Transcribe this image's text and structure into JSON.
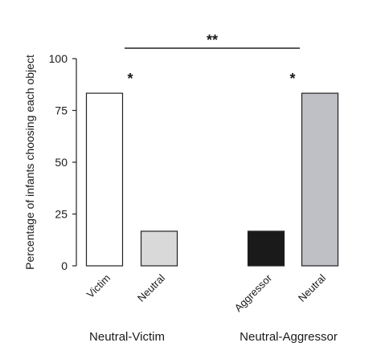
{
  "chart_data": {
    "type": "bar",
    "ylabel": "Percentage of  infants choosing each object",
    "ylim": [
      0,
      100
    ],
    "yticks": [
      0,
      25,
      50,
      75,
      100
    ],
    "grid": false,
    "categories": [
      "Victim",
      "Neutral",
      "Aggressor",
      "Neutral"
    ],
    "values": [
      83.3,
      16.7,
      16.7,
      83.3
    ],
    "bar_colors": [
      "#ffffff",
      "#d9d9d9",
      "#1a1a1a",
      "#bfc0c5"
    ],
    "groups": [
      {
        "label": "Neutral-Victim",
        "bars": [
          0,
          1
        ]
      },
      {
        "label": "Neutral-Aggressor",
        "bars": [
          2,
          3
        ]
      }
    ],
    "annotations": [
      {
        "text": "*",
        "bar": 0
      },
      {
        "text": "*",
        "bar": 3
      },
      {
        "text": "**",
        "spans_bars": [
          0,
          3
        ]
      }
    ]
  }
}
